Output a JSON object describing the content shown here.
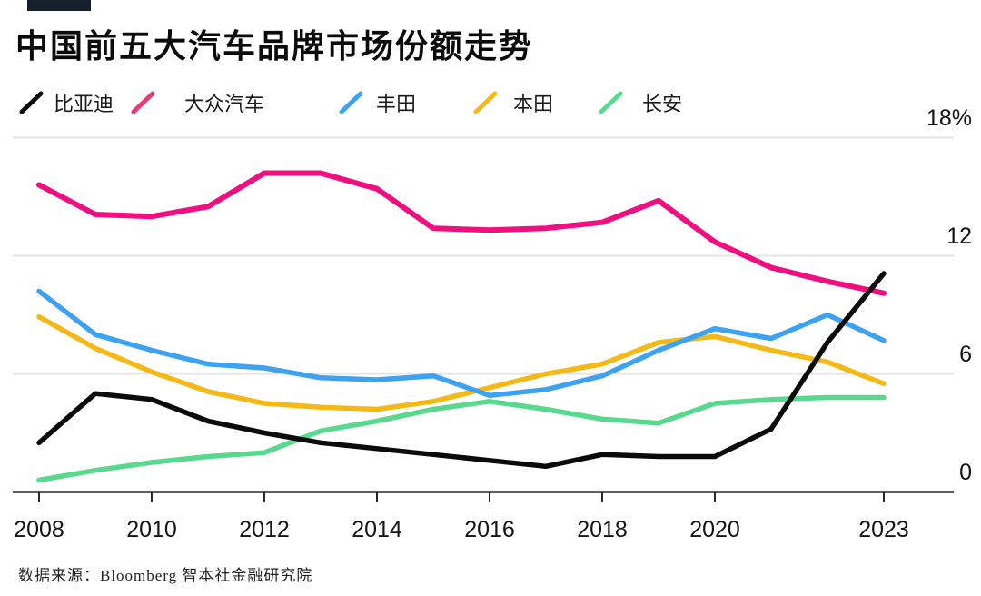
{
  "title": "中国前五大汽车品牌市场份额走势",
  "source": "数据来源：Bloomberg 智本社金融研究院",
  "colors": {
    "byd": "#0b0b0b",
    "volkswagen": "#f00e80",
    "toyota": "#3da2f0",
    "honda": "#f5b917",
    "changan": "#58d98d",
    "gridline": "#e3e3e3",
    "axis": "#2b2b2b",
    "text": "#151515",
    "kicker_bar": "#16202d"
  },
  "legend": {
    "items": [
      {
        "label": "比亚迪",
        "color": "#0b0b0b"
      },
      {
        "label": "大众汽车",
        "color": "#e8397a"
      },
      {
        "label": "丰田",
        "color": "#3da2f0"
      },
      {
        "label": "本田",
        "color": "#f5b917"
      },
      {
        "label": "长安",
        "color": "#58d98d"
      }
    ]
  },
  "chart_data": {
    "type": "line",
    "title": "中国前五大汽车品牌市场份额走势",
    "unit": "%",
    "ylim": [
      0,
      18
    ],
    "grid": "horizontal",
    "legend_position": "top",
    "x": [
      2008,
      2009,
      2010,
      2011,
      2012,
      2013,
      2014,
      2015,
      2016,
      2017,
      2018,
      2019,
      2020,
      2021,
      2022,
      2023
    ],
    "series": [
      {
        "name": "比亚迪",
        "color": "#0b0b0b",
        "values": [
          2.5,
          5.0,
          4.7,
          3.6,
          3.0,
          2.5,
          2.2,
          1.9,
          1.6,
          1.3,
          1.9,
          1.8,
          1.8,
          3.2,
          7.6,
          11.1
        ]
      },
      {
        "name": "大众汽车",
        "color": "#f00e80",
        "values": [
          15.6,
          14.1,
          14.0,
          14.5,
          16.2,
          16.2,
          15.4,
          13.4,
          13.3,
          13.4,
          13.7,
          14.8,
          12.7,
          11.4,
          10.7,
          10.1
        ]
      },
      {
        "name": "丰田",
        "color": "#3da2f0",
        "values": [
          10.2,
          8.0,
          7.2,
          6.5,
          6.3,
          5.8,
          5.7,
          5.9,
          4.9,
          5.2,
          5.9,
          7.2,
          8.3,
          7.8,
          9.0,
          7.7
        ]
      },
      {
        "name": "本田",
        "color": "#f5b917",
        "values": [
          8.9,
          7.3,
          6.1,
          5.1,
          4.5,
          4.3,
          4.2,
          4.6,
          5.3,
          6.0,
          6.5,
          7.6,
          7.9,
          7.2,
          6.6,
          5.5
        ]
      },
      {
        "name": "长安",
        "color": "#58d98d",
        "values": [
          0.6,
          1.1,
          1.5,
          1.8,
          2.0,
          3.1,
          3.6,
          4.2,
          4.6,
          4.2,
          3.7,
          3.5,
          4.5,
          4.7,
          4.8,
          4.8
        ]
      }
    ],
    "y_axis": [
      {
        "value": 18,
        "label": "18%"
      },
      {
        "value": 12,
        "label": "12"
      },
      {
        "value": 6,
        "label": "6"
      },
      {
        "value": 0,
        "label": "0"
      }
    ],
    "x_ticks": [
      {
        "year": 2008,
        "label": "2008"
      },
      {
        "year": 2010,
        "label": "2010"
      },
      {
        "year": 2012,
        "label": "2012"
      },
      {
        "year": 2014,
        "label": "2014"
      },
      {
        "year": 2016,
        "label": "2016"
      },
      {
        "year": 2018,
        "label": "2018"
      },
      {
        "year": 2020,
        "label": "2020"
      },
      {
        "year": 2023,
        "label": "2023"
      }
    ]
  }
}
